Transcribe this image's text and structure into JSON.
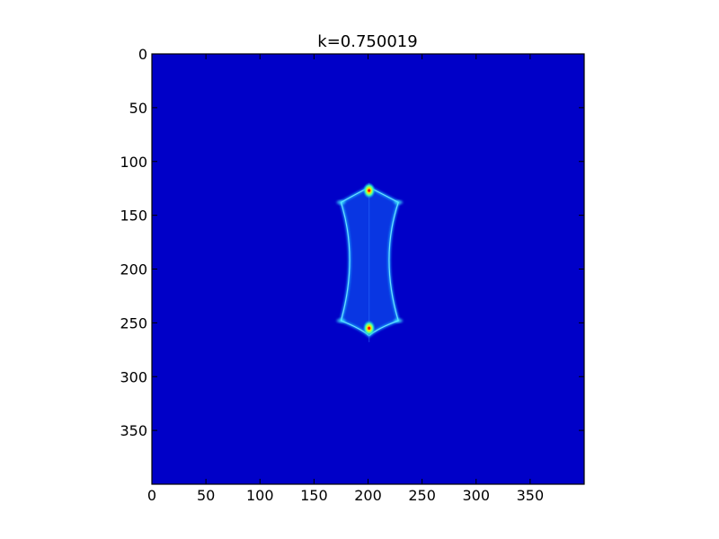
{
  "chart_data": {
    "type": "heatmap",
    "title": "k=0.750019",
    "xlabel": "",
    "ylabel": "",
    "xlim": [
      0,
      400
    ],
    "ylim": [
      400,
      0
    ],
    "x_ticks": [
      "0",
      "50",
      "100",
      "150",
      "200",
      "250",
      "300",
      "350"
    ],
    "y_ticks": [
      "0",
      "50",
      "100",
      "150",
      "200",
      "250",
      "300",
      "350"
    ],
    "colormap": "jet",
    "background_color": "#0000c8",
    "grid": false,
    "features": [
      {
        "name": "caustic-outline",
        "shape": "astroid",
        "center": [
          201,
          192
        ],
        "x_range": [
          175,
          228
        ],
        "y_range": [
          128,
          258
        ]
      },
      {
        "name": "upper-cusp-peak",
        "x": 201,
        "y": 127
      },
      {
        "name": "lower-cusp-peak",
        "x": 201,
        "y": 255
      }
    ]
  }
}
